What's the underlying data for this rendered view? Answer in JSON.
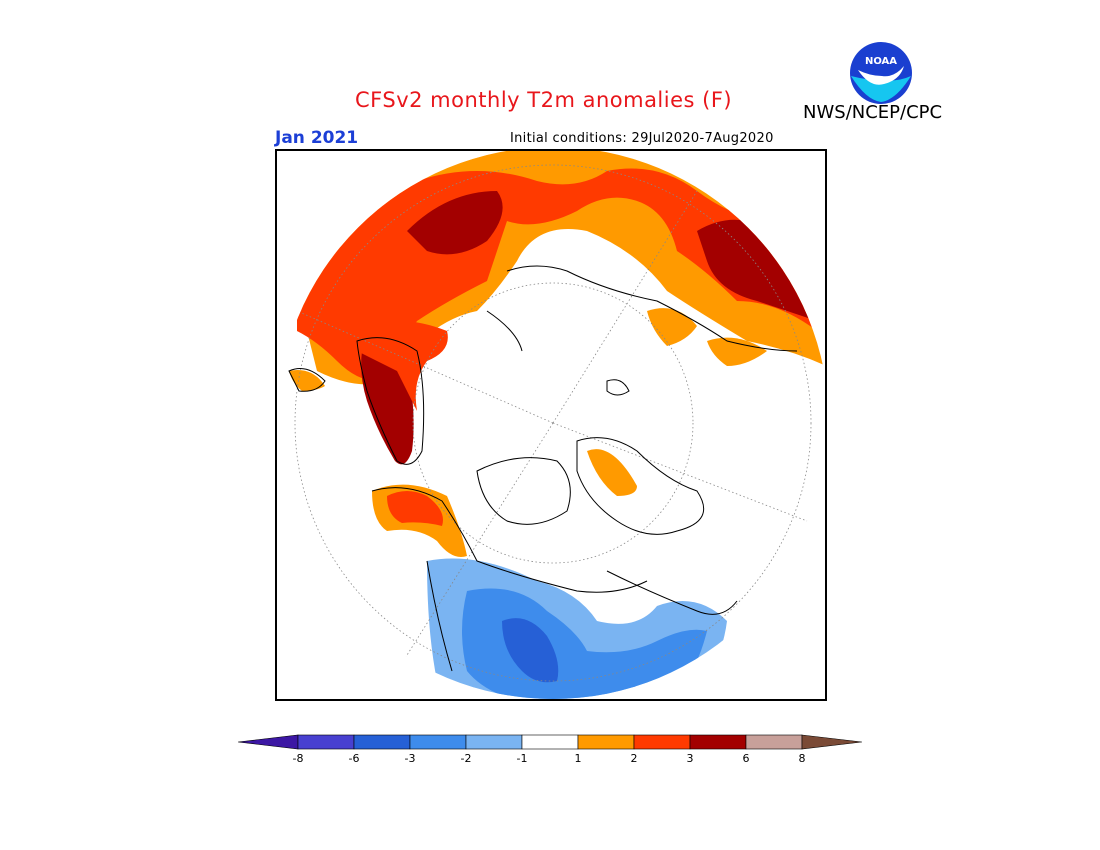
{
  "title": "CFSv2 monthly T2m anomalies (F)",
  "org": "NWS/NCEP/CPC",
  "logo_text": "NOAA",
  "target_month": "Jan 2021",
  "initial_conditions": "Initial conditions: 29Jul2020-7Aug2020",
  "colors": {
    "title": "#e8161b",
    "month": "#1c3fd6"
  },
  "colorbar": {
    "bins": [
      {
        "color": "#3c17a4"
      },
      {
        "color": "#4840d0"
      },
      {
        "color": "#2660d6"
      },
      {
        "color": "#3e8cec"
      },
      {
        "color": "#7ab4f2"
      },
      {
        "color": "#ffffff"
      },
      {
        "color": "#ff9a00"
      },
      {
        "color": "#ff3a00"
      },
      {
        "color": "#a30000"
      },
      {
        "color": "#c8a09a"
      },
      {
        "color": "#7a4a36"
      }
    ],
    "ticks": [
      "-8",
      "-6",
      "-3",
      "-2",
      "-1",
      "1",
      "2",
      "3",
      "6",
      "8"
    ]
  }
}
